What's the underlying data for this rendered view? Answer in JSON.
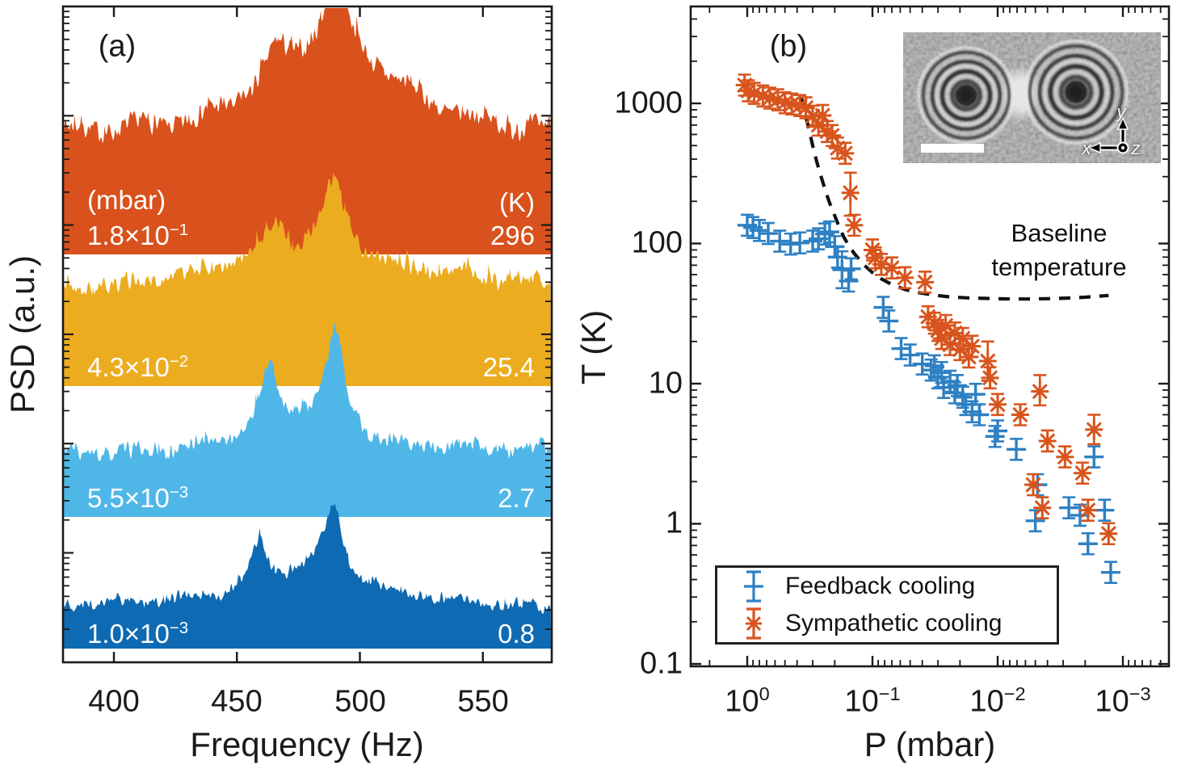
{
  "chart_data": [
    {
      "type": "area",
      "panel": "a",
      "title": "(a)",
      "xlabel": "Frequency (Hz)",
      "ylabel": "PSD (a.u.)",
      "xlim": [
        380,
        578
      ],
      "x_ticks": [
        400,
        450,
        500,
        550
      ],
      "x_tick_labels": [
        "400",
        "450",
        "500",
        "550"
      ],
      "y_scale": "log, unlabeled arbitrary units",
      "pressure_header": "(mbar)",
      "temperature_header": "(K)",
      "series": [
        {
          "pressure_mbar": 0.18,
          "pressure_base": "1.8×10",
          "pressure_exp": "−1",
          "temperature_K": 296,
          "temperature_label": "296",
          "color": "#d9511c",
          "peaks_hz": [
            466,
            490
          ],
          "render": {
            "base": 315,
            "floor": 135,
            "noise": 15,
            "seed": 7,
            "peaks": [
              {
                "f": 490,
                "w": 45,
                "a": 95
              },
              {
                "f": 490,
                "w": 8,
                "a": 90
              },
              {
                "f": 466,
                "w": 6,
                "a": 38
              }
            ]
          }
        },
        {
          "pressure_mbar": 0.043,
          "pressure_base": "4.3×10",
          "pressure_exp": "−2",
          "temperature_K": 25.4,
          "temperature_label": "25.4",
          "color": "#ecac20",
          "peaks_hz": [
            466,
            490
          ],
          "render": {
            "base": 478,
            "floor": 120,
            "noise": 13,
            "seed": 21,
            "peaks": [
              {
                "f": 485,
                "w": 38,
                "a": 48
              },
              {
                "f": 490,
                "w": 6,
                "a": 86
              },
              {
                "f": 466,
                "w": 5,
                "a": 40
              }
            ]
          }
        },
        {
          "pressure_mbar": 0.0055,
          "pressure_base": "5.5×10",
          "pressure_exp": "−3",
          "temperature_K": 2.7,
          "temperature_label": "2.7",
          "color": "#4fb7e8",
          "peaks_hz": [
            463,
            490
          ],
          "render": {
            "base": 640,
            "floor": 78,
            "noise": 11,
            "seed": 33,
            "peaks": [
              {
                "f": 480,
                "w": 25,
                "a": 40
              },
              {
                "f": 490,
                "w": 4.5,
                "a": 113
              },
              {
                "f": 463,
                "w": 4,
                "a": 77
              }
            ]
          }
        },
        {
          "pressure_mbar": 0.001,
          "pressure_base": "1.0×10",
          "pressure_exp": "−3",
          "temperature_K": 0.8,
          "temperature_label": "0.8",
          "color": "#0e6ab2",
          "peaks_hz": [
            459,
            489
          ],
          "render": {
            "base": 803,
            "floor": 52,
            "noise": 8.5,
            "seed": 47,
            "peaks": [
              {
                "f": 480,
                "w": 26,
                "a": 42
              },
              {
                "f": 489,
                "w": 4.5,
                "a": 89
              },
              {
                "f": 459,
                "w": 4,
                "a": 57
              }
            ]
          }
        }
      ]
    },
    {
      "type": "scatter",
      "panel": "b",
      "title": "(b)",
      "xlabel": "P (mbar)",
      "ylabel": "T (K)",
      "x_scale": "log",
      "y_scale": "log",
      "x_axis_reversed": true,
      "xlim": [
        2.8,
        0.00043
      ],
      "ylim": [
        0.1,
        4900
      ],
      "x_ticks": [
        1,
        0.1,
        0.01,
        0.001
      ],
      "x_tick_parts": [
        {
          "base": "10",
          "exp": "0"
        },
        {
          "base": "10",
          "exp": "−1"
        },
        {
          "base": "10",
          "exp": "−2"
        },
        {
          "base": "10",
          "exp": "−3"
        }
      ],
      "y_ticks": [
        1000,
        100,
        10,
        1,
        0.1
      ],
      "y_tick_labels": [
        "1000",
        "100",
        "10",
        "1",
        "0.1"
      ],
      "legend_position": "bottom-left",
      "series": [
        {
          "name": "Feedback cooling",
          "marker": "plus",
          "color": "#2e80c3",
          "points": [
            [
              1.0,
              135
            ],
            [
              0.9,
              130
            ],
            [
              0.8,
              124
            ],
            [
              0.68,
              118
            ],
            [
              0.55,
              104
            ],
            [
              0.45,
              99
            ],
            [
              0.38,
              101
            ],
            [
              0.3,
              104
            ],
            [
              0.27,
              108
            ],
            [
              0.24,
              117
            ],
            [
              0.22,
              121
            ],
            [
              0.2,
              95
            ],
            [
              0.19,
              80
            ],
            [
              0.175,
              65
            ],
            [
              0.155,
              54
            ],
            [
              0.148,
              66
            ],
            [
              0.082,
              35
            ],
            [
              0.074,
              28
            ],
            [
              0.059,
              17.8
            ],
            [
              0.05,
              16
            ],
            [
              0.04,
              13.8
            ],
            [
              0.034,
              12.5
            ],
            [
              0.032,
              13.4
            ],
            [
              0.03,
              11
            ],
            [
              0.028,
              12
            ],
            [
              0.027,
              9.4
            ],
            [
              0.024,
              10.4
            ],
            [
              0.022,
              8.6
            ],
            [
              0.021,
              9.7
            ],
            [
              0.019,
              8
            ],
            [
              0.018,
              7.1
            ],
            [
              0.016,
              6.3
            ],
            [
              0.015,
              8.4
            ],
            [
              0.014,
              6
            ],
            [
              0.0105,
              4.2
            ],
            [
              0.01,
              4.6
            ],
            [
              0.0071,
              3.4
            ],
            [
              0.0048,
              1.9
            ],
            [
              0.005,
              1.05
            ],
            [
              0.0027,
              1.3
            ],
            [
              0.0022,
              1.15
            ],
            [
              0.0017,
              3
            ],
            [
              0.0019,
              0.72
            ],
            [
              0.0014,
              1.25
            ],
            [
              0.00125,
              0.45
            ]
          ],
          "big_error_bars": [
            {
              "p": 0.175,
              "t": 65,
              "lo": 48,
              "hi": 88
            }
          ]
        },
        {
          "name": "Sympathetic cooling",
          "marker": "asterisk",
          "color": "#d8541c",
          "points": [
            [
              1.05,
              1350
            ],
            [
              0.98,
              1230
            ],
            [
              0.88,
              1180
            ],
            [
              0.75,
              1130
            ],
            [
              0.66,
              1090
            ],
            [
              0.57,
              1060
            ],
            [
              0.5,
              1010
            ],
            [
              0.44,
              990
            ],
            [
              0.38,
              965
            ],
            [
              0.34,
              930
            ],
            [
              0.3,
              810
            ],
            [
              0.27,
              700
            ],
            [
              0.25,
              820
            ],
            [
              0.23,
              630
            ],
            [
              0.21,
              590
            ],
            [
              0.19,
              480
            ],
            [
              0.165,
              440
            ],
            [
              0.15,
              230
            ],
            [
              0.14,
              135
            ],
            [
              0.1,
              90
            ],
            [
              0.095,
              79
            ],
            [
              0.085,
              71
            ],
            [
              0.07,
              67
            ],
            [
              0.055,
              57
            ],
            [
              0.038,
              53
            ],
            [
              0.036,
              30
            ],
            [
              0.032,
              27
            ],
            [
              0.03,
              24
            ],
            [
              0.028,
              21
            ],
            [
              0.026,
              26
            ],
            [
              0.024,
              19
            ],
            [
              0.022,
              23
            ],
            [
              0.02,
              17.5
            ],
            [
              0.019,
              21
            ],
            [
              0.017,
              15.5
            ],
            [
              0.016,
              18.5
            ],
            [
              0.012,
              14.5
            ],
            [
              0.0115,
              11
            ],
            [
              0.01,
              7.1
            ],
            [
              0.0066,
              6
            ],
            [
              0.0046,
              8.8
            ],
            [
              0.004,
              3.9
            ],
            [
              0.0029,
              3
            ],
            [
              0.0021,
              2.3
            ],
            [
              0.0052,
              1.9
            ],
            [
              0.0044,
              1.3
            ],
            [
              0.0019,
              1.25
            ],
            [
              0.0017,
              4.7
            ],
            [
              0.0013,
              0.85
            ]
          ],
          "big_error_bars": [
            {
              "p": 0.15,
              "t": 230,
              "lo": 158,
              "hi": 320
            },
            {
              "p": 0.012,
              "t": 14.5,
              "lo": 10.5,
              "hi": 20
            },
            {
              "p": 0.0046,
              "t": 8.8,
              "lo": 7,
              "hi": 11.5
            },
            {
              "p": 0.0017,
              "t": 4.7,
              "lo": 3.7,
              "hi": 6
            }
          ]
        }
      ],
      "baseline": {
        "label": "Baseline temperature",
        "label_lines": [
          "Baseline",
          "temperature"
        ],
        "style": "dashed",
        "color": "#111111",
        "points": [
          [
            0.37,
            1100
          ],
          [
            0.345,
            850
          ],
          [
            0.32,
            640
          ],
          [
            0.3,
            500
          ],
          [
            0.28,
            390
          ],
          [
            0.26,
            310
          ],
          [
            0.24,
            245
          ],
          [
            0.22,
            195
          ],
          [
            0.2,
            158
          ],
          [
            0.185,
            132
          ],
          [
            0.17,
            112
          ],
          [
            0.155,
            97
          ],
          [
            0.14,
            85
          ],
          [
            0.12,
            72
          ],
          [
            0.1,
            62
          ],
          [
            0.085,
            56
          ],
          [
            0.07,
            51
          ],
          [
            0.055,
            47
          ],
          [
            0.042,
            44.5
          ],
          [
            0.032,
            42.8
          ],
          [
            0.024,
            41.6
          ],
          [
            0.018,
            41
          ],
          [
            0.013,
            40.6
          ],
          [
            0.009,
            40.3
          ],
          [
            0.006,
            40.2
          ],
          [
            0.004,
            40.4
          ],
          [
            0.0028,
            40.8
          ],
          [
            0.002,
            41.4
          ],
          [
            0.0015,
            42.2
          ],
          [
            0.0013,
            42.6
          ]
        ]
      },
      "inset": {
        "description": "grayscale micrograph of two levitated particles with diffraction rings, white scale bar",
        "axis_labels": {
          "x": "x",
          "y": "y",
          "z": "z"
        }
      }
    }
  ]
}
